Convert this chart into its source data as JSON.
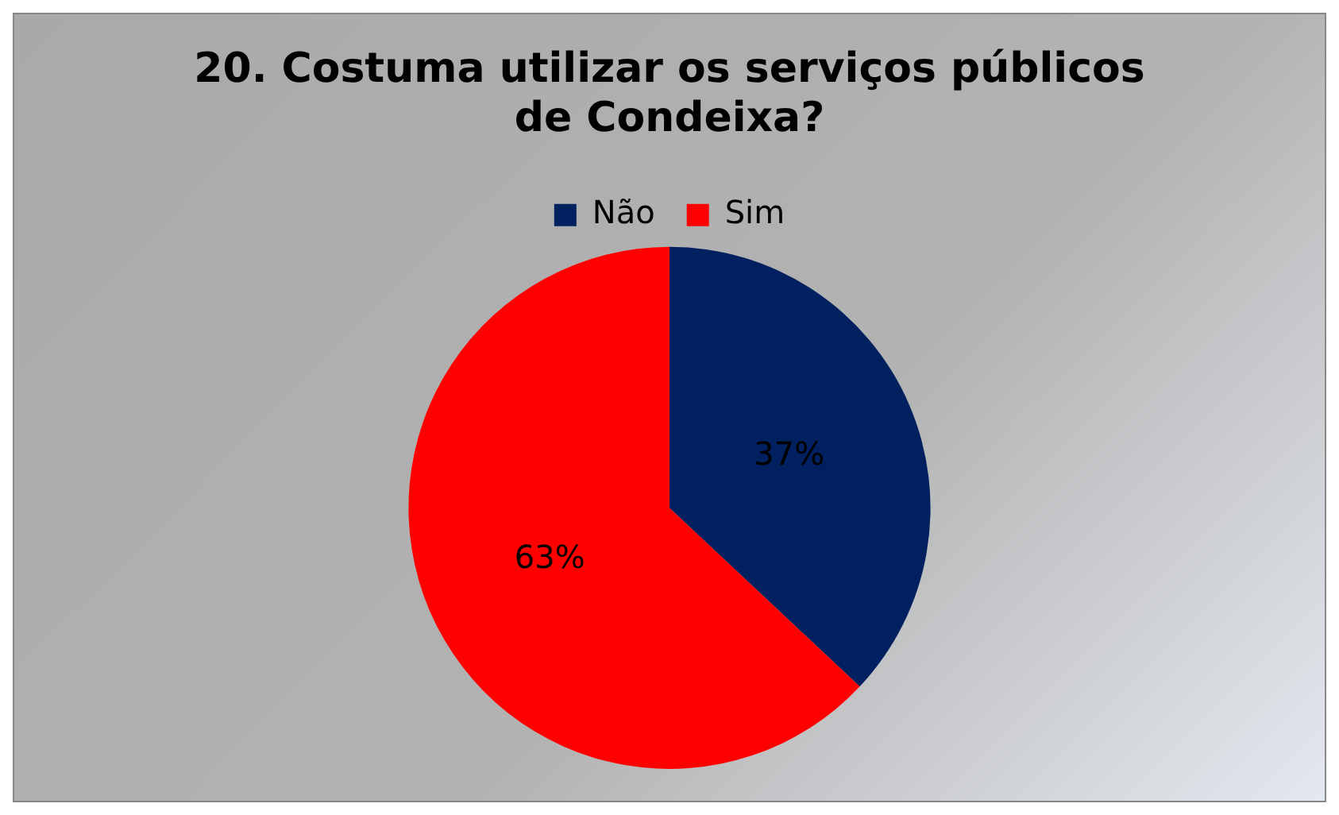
{
  "chart_data": {
    "type": "pie",
    "title": "20. Costuma utilizar os serviços públicos de Condeixa?",
    "categories": [
      "Não",
      "Sim"
    ],
    "values": [
      37,
      63
    ],
    "colors": [
      "#002060",
      "#ff0000"
    ],
    "value_labels": [
      "37%",
      "63%"
    ],
    "legend": "top"
  }
}
